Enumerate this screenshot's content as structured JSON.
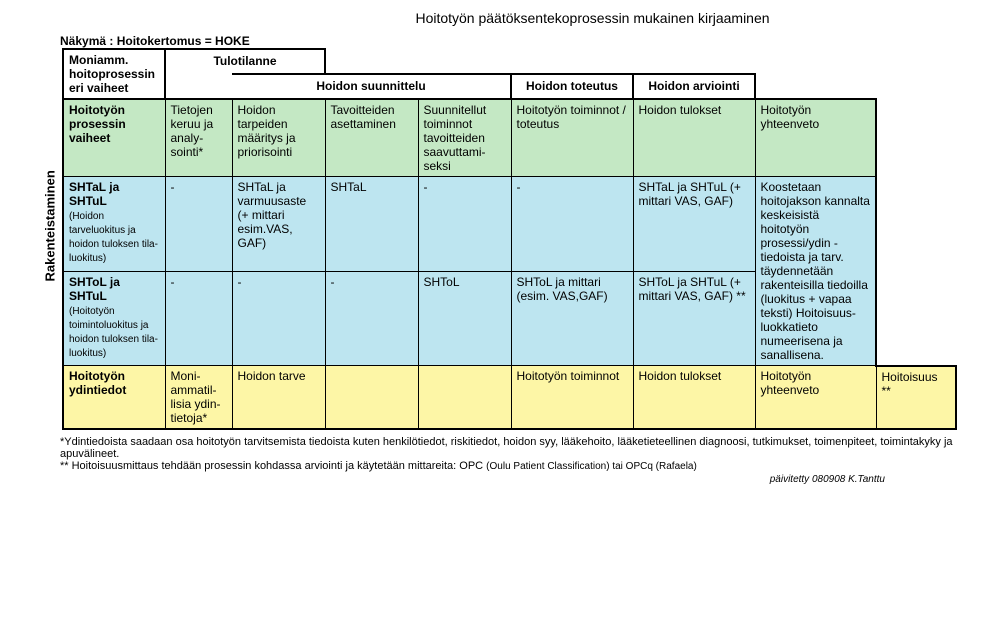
{
  "title": "Hoitotyön päätöksentekoprosessin mukainen kirjaaminen",
  "subtitle": "Näkymä : Hoitokertomus = HOKE",
  "sidelabel": "Rakenteistaminen",
  "header": {
    "c0": "Moniamm. hoitoprosessin eri vaiheet",
    "tulo": "Tulotilanne",
    "suun": "Hoidon suunnittelu",
    "tot": "Hoidon toteutus",
    "arv": "Hoidon arviointi"
  },
  "row1": {
    "c0": "Hoitotyön prosessin vaiheet",
    "c1": "Tietojen keruu ja analy-sointi*",
    "c2": "Hoidon tarpeiden määritys ja priorisointi",
    "c3": "Tavoitteiden asettaminen",
    "c4": "Suunnitellut toiminnot tavoitteiden saavuttami-seksi",
    "c5": "Hoitotyön toiminnot / toteutus",
    "c6": "Hoidon tulokset",
    "c7": "Hoitotyön yhteenveto"
  },
  "row2": {
    "title": "SHTaL ja SHTuL",
    "sub": "(Hoidon tarveluokitus ja hoidon tuloksen tila-luokitus)",
    "c1": "-",
    "c2": "SHTaL ja varmuusaste (+ mittari esim.VAS, GAF)",
    "c3": "SHTaL",
    "c4": "-",
    "c5": "-",
    "c6": "SHTaL ja SHTuL (+ mittari VAS, GAF)"
  },
  "row3": {
    "title": "SHToL ja SHTuL",
    "sub": "(Hoitotyön toimintoluokitus ja hoidon tuloksen tila-luokitus)",
    "c1": "-",
    "c2": "-",
    "c3": "-",
    "c4": "SHToL",
    "c5": "SHToL ja mittari (esim. VAS,GAF)",
    "c6": "SHToL ja SHTuL (+ mittari VAS, GAF)        **"
  },
  "rightMerge": "Koostetaan hoitojakson kannalta keskeisistä hoitotyön prosessi/ydin -tiedoista ja tarv. täydennetään rakenteisilla tiedoilla (luokitus + vapaa teksti) Hoitoisuus-luokkatieto numeerisena ja sanallisena.",
  "row4": {
    "c0": "Hoitotyön ydintiedot",
    "c1": "Moni-ammatil-lisia ydin-tietoja*",
    "c2": "Hoidon tarve",
    "c3": "",
    "c4": "",
    "c5": "Hoitotyön toiminnot",
    "c6": "Hoidon tulokset",
    "c7": "Hoitotyön yhteenveto",
    "c8": "Hoitoisuus **"
  },
  "foot1": "*Ydintiedoista saadaan osa hoitotyön tarvitsemista tiedoista kuten henkilötiedot, riskitiedot, hoidon syy, lääkehoito, lääketieteellinen diagnoosi, tutkimukset, toimenpiteet, toimintakyky ja apuvälineet.",
  "foot2a": "** Hoitoisuusmittaus tehdään prosessin kohdassa arviointi ja käytetään mittareita: OPC ",
  "foot2b": "(Oulu Patient Classification) tai OPCq (Rafaela)",
  "updated": "päivitetty 080908 K.Tanttu"
}
